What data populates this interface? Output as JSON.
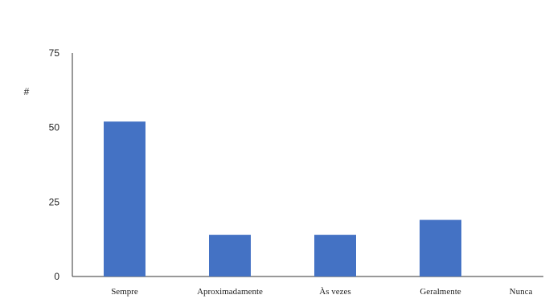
{
  "chart_data": {
    "type": "bar",
    "title": "",
    "xlabel": "",
    "ylabel": "#",
    "categories": [
      "Sempre",
      "Aproximadamente",
      "Às vezes",
      "Geralmente",
      "Nunca"
    ],
    "values": [
      52,
      14,
      14,
      19,
      0
    ],
    "ylim": [
      0,
      75
    ],
    "yticks": [
      0,
      25,
      50,
      75
    ],
    "grid": false,
    "legend": "none",
    "bar_color": "#4472C4",
    "axis_color": "#333333"
  }
}
